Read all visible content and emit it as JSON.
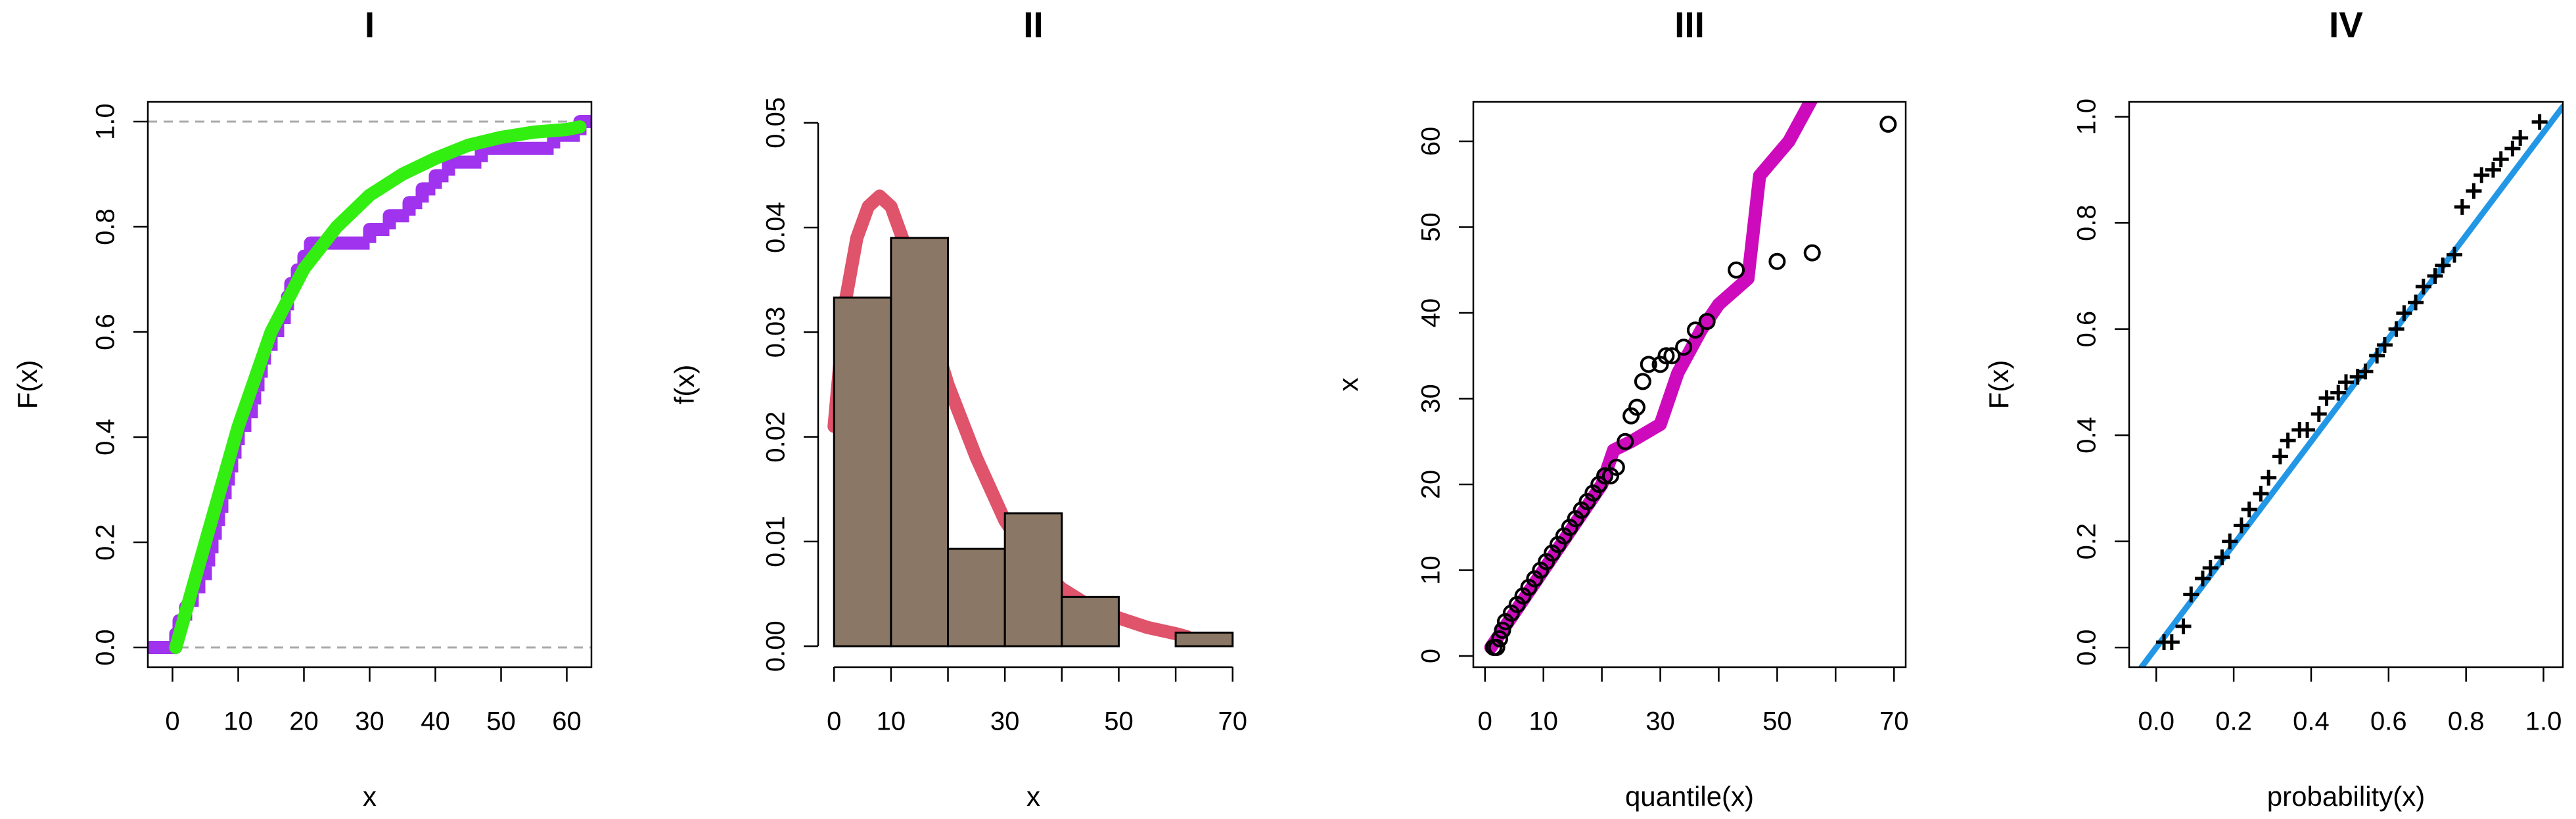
{
  "chart_data": [
    {
      "type": "line",
      "title": "I",
      "xlabel": "x",
      "ylabel": "F(x)",
      "xlim": [
        -3.75,
        63.75
      ],
      "ylim": [
        -0.0375,
        1.0375
      ],
      "xticks": [
        0,
        10,
        20,
        30,
        40,
        50,
        60
      ],
      "yticks": [
        {
          "value": 0,
          "label": "0.0"
        },
        0.2,
        0.4,
        0.6,
        0.8,
        {
          "value": 1,
          "label": "1.0"
        }
      ],
      "hlines": [
        0,
        1
      ],
      "hline_color": "#aaaaaa",
      "series": [
        {
          "mode": "step",
          "color": "#a033ee",
          "x": [
            0.5,
            1,
            2,
            3,
            4,
            5,
            5.5,
            6,
            6.5,
            7,
            7.5,
            8,
            8.5,
            9,
            9.5,
            10,
            11,
            12,
            12.5,
            13,
            13.5,
            14,
            15,
            16,
            17,
            17.5,
            18,
            19,
            20,
            21,
            30,
            33,
            36,
            38,
            40,
            42,
            47,
            58,
            62
          ],
          "values": [
            0.026,
            0.051,
            0.077,
            0.103,
            0.128,
            0.154,
            0.179,
            0.205,
            0.231,
            0.256,
            0.282,
            0.308,
            0.333,
            0.359,
            0.385,
            0.41,
            0.436,
            0.462,
            0.487,
            0.513,
            0.538,
            0.564,
            0.59,
            0.615,
            0.641,
            0.667,
            0.692,
            0.718,
            0.744,
            0.769,
            0.795,
            0.821,
            0.846,
            0.872,
            0.897,
            0.923,
            0.949,
            0.974,
            1
          ]
        },
        {
          "mode": "line",
          "color": "#33ee11",
          "x": [
            0.5,
            5,
            10,
            15,
            20,
            25,
            30,
            35,
            40,
            45,
            50,
            55,
            60,
            62
          ],
          "values": [
            0.0,
            0.2,
            0.42,
            0.6,
            0.72,
            0.8,
            0.86,
            0.9,
            0.93,
            0.955,
            0.97,
            0.98,
            0.985,
            0.99
          ]
        }
      ]
    },
    {
      "type": "histogram",
      "title": "II",
      "xlabel": "x",
      "ylabel": "f(x)",
      "xlim": [
        -2.8,
        72.8
      ],
      "ylim": [
        -0.002,
        0.052
      ],
      "xticks": [
        0,
        10,
        {
          "value": 20,
          "label": null
        },
        30,
        {
          "value": 40,
          "label": null
        },
        50,
        {
          "value": 60,
          "label": null
        },
        70
      ],
      "yticks": [
        {
          "value": 0,
          "label": "0.00"
        },
        0.01,
        0.02,
        0.03,
        0.04,
        0.05
      ],
      "bins": [
        0,
        10,
        20,
        30,
        40,
        50,
        60,
        70
      ],
      "counts": [
        0.0333,
        0.039,
        0.0093,
        0.0127,
        0.0047,
        0,
        0.0013
      ],
      "color": "#8b7765",
      "series": [
        {
          "mode": "line",
          "color": "#df536b",
          "x": [
            0,
            2,
            4,
            6,
            8,
            10,
            12,
            15,
            20,
            25,
            30,
            35,
            40,
            45,
            50,
            55,
            60,
            62
          ],
          "values": [
            0.021,
            0.033,
            0.039,
            0.042,
            0.043,
            0.042,
            0.039,
            0.034,
            0.025,
            0.018,
            0.012,
            0.008,
            0.0055,
            0.0038,
            0.0027,
            0.0018,
            0.0012,
            0.0009
          ]
        }
      ]
    },
    {
      "type": "scatter",
      "title": "III",
      "xlabel": "quantile(x)",
      "ylabel": "x",
      "xlim": [
        -2,
        72
      ],
      "ylim": [
        -1.3,
        64.6
      ],
      "xticks": [
        0,
        10,
        {
          "value": 20,
          "label": null
        },
        30,
        {
          "value": 40,
          "label": null
        },
        50,
        {
          "value": 60,
          "label": null
        },
        70
      ],
      "yticks": [
        0,
        10,
        20,
        30,
        40,
        50,
        60
      ],
      "series": [
        {
          "mode": "line",
          "color": "#cd0bbc",
          "x": [
            1,
            3,
            6,
            10,
            15,
            20,
            22,
            25,
            30,
            33,
            37,
            40,
            45,
            47,
            52,
            56
          ],
          "values": [
            1,
            3,
            6,
            10,
            15,
            20,
            24,
            25,
            27,
            33,
            38,
            41,
            44,
            56,
            60,
            65
          ]
        },
        {
          "mode": "points",
          "marker": "circle",
          "color": "#000000",
          "x": [
            1.5,
            2,
            2.5,
            3,
            3.5,
            4.5,
            5.5,
            6.5,
            7.5,
            8.5,
            9.5,
            10.5,
            11.5,
            12.5,
            13.5,
            14.5,
            15.5,
            16.5,
            17.5,
            18.5,
            19.5,
            20.5,
            21.5,
            22.5,
            24,
            25,
            26,
            27,
            28,
            30,
            31,
            32,
            34,
            36,
            38,
            43,
            50,
            56,
            69
          ],
          "values": [
            1,
            1,
            2,
            3,
            4,
            5,
            6,
            7,
            8,
            9,
            10,
            11,
            12,
            13,
            14,
            15,
            16,
            17,
            18,
            19,
            20,
            21,
            21,
            22,
            25,
            28,
            29,
            32,
            34,
            34,
            35,
            35,
            36,
            38,
            39,
            45,
            46,
            47,
            62
          ]
        }
      ]
    },
    {
      "type": "scatter",
      "title": "IV",
      "xlabel": "probability(x)",
      "ylabel": "F(x)",
      "xlim": [
        -0.07,
        1.05
      ],
      "ylim": [
        -0.037,
        1.028
      ],
      "xticks": [
        {
          "value": 0,
          "label": "0.0"
        },
        0.2,
        0.4,
        0.6,
        0.8,
        {
          "value": 1,
          "label": "1.0"
        }
      ],
      "yticks": [
        {
          "value": 0,
          "label": "0.0"
        },
        0.2,
        0.4,
        0.6,
        0.8,
        {
          "value": 1,
          "label": "1.0"
        }
      ],
      "series": [
        {
          "mode": "line",
          "color": "#2297e6",
          "x": [
            -0.07,
            1.05
          ],
          "values": [
            -0.068,
            1.019
          ]
        },
        {
          "mode": "points",
          "marker": "plus",
          "color": "#000000",
          "x": [
            0.02,
            0.04,
            0.07,
            0.09,
            0.12,
            0.14,
            0.17,
            0.19,
            0.22,
            0.24,
            0.27,
            0.29,
            0.32,
            0.34,
            0.37,
            0.39,
            0.42,
            0.44,
            0.47,
            0.49,
            0.52,
            0.54,
            0.57,
            0.59,
            0.62,
            0.64,
            0.67,
            0.69,
            0.72,
            0.74,
            0.77,
            0.79,
            0.82,
            0.84,
            0.87,
            0.89,
            0.92,
            0.94,
            0.99
          ],
          "values": [
            0.01,
            0.01,
            0.04,
            0.1,
            0.13,
            0.15,
            0.17,
            0.2,
            0.23,
            0.26,
            0.29,
            0.32,
            0.36,
            0.39,
            0.41,
            0.41,
            0.44,
            0.47,
            0.48,
            0.5,
            0.51,
            0.52,
            0.55,
            0.57,
            0.6,
            0.63,
            0.65,
            0.68,
            0.7,
            0.72,
            0.74,
            0.83,
            0.86,
            0.89,
            0.9,
            0.92,
            0.94,
            0.96,
            0.99
          ]
        }
      ]
    }
  ]
}
